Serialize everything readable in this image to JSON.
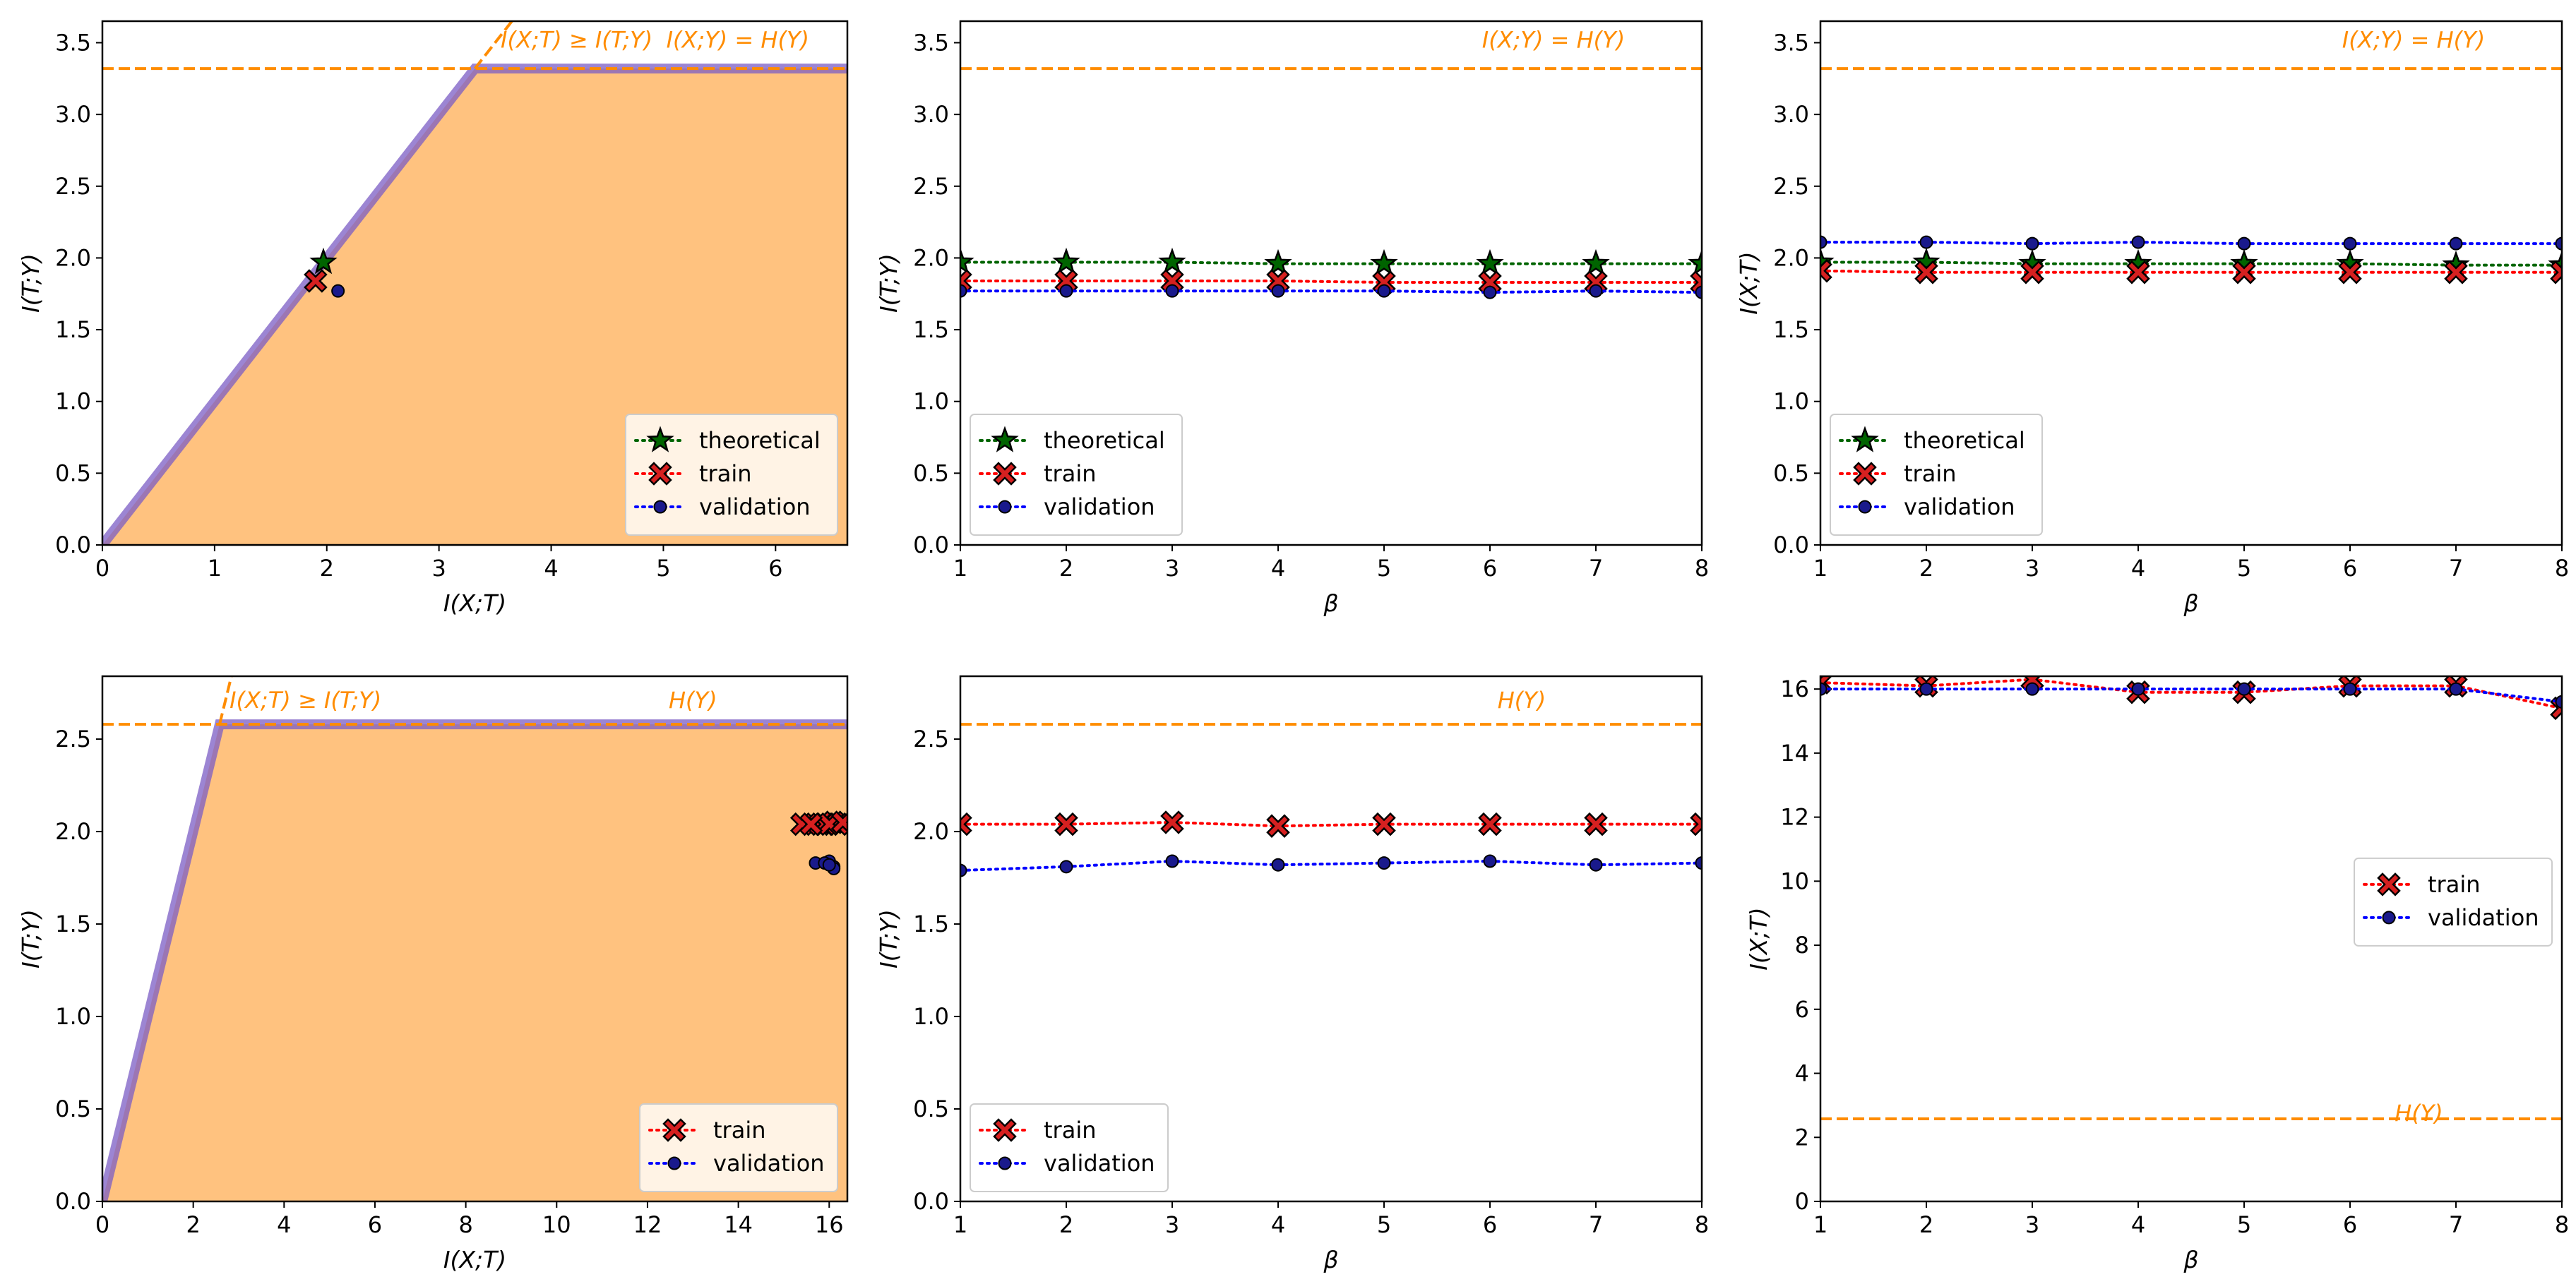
{
  "colors": {
    "region_fill": "#ffc27f",
    "boundary": "#7b5cc4",
    "hy_line": "#ff8c00",
    "theoretical": "#006400",
    "train": "#ff0000",
    "validation": "#0000ff",
    "train_marker": "#d62020",
    "validation_marker": "#1a1a8c"
  },
  "chart_data": [
    {
      "id": "p1",
      "type": "scatter",
      "xlabel": "I(X;T)",
      "ylabel": "I(T;Y)",
      "xlim": [
        0,
        6.64
      ],
      "ylim": [
        0,
        3.65
      ],
      "xticks": [
        0,
        1,
        2,
        3,
        4,
        5,
        6
      ],
      "xtick_labels": [
        "0",
        "1",
        "2",
        "3",
        "4",
        "5",
        "6"
      ],
      "yticks": [
        0,
        0.5,
        1,
        1.5,
        2,
        2.5,
        3,
        3.5
      ],
      "ytick_labels": [
        "0.0",
        "0.5",
        "1.0",
        "1.5",
        "2.0",
        "2.5",
        "3.0",
        "3.5"
      ],
      "region": {
        "hy": 3.32
      },
      "hy_line": 3.32,
      "annotations": [
        {
          "text": "I(X;T) ≥ I(T;Y)",
          "x": 3.55,
          "y": 3.52,
          "anchor": "start"
        },
        {
          "text": "I(X;Y) = H(Y)",
          "x": 6.3,
          "y": 3.52,
          "anchor": "end"
        }
      ],
      "series": [
        {
          "name": "theoretical",
          "marker": "star",
          "line": false,
          "x": [
            1.97
          ],
          "y": [
            1.97
          ]
        },
        {
          "name": "train",
          "marker": "x",
          "line": false,
          "x": [
            1.9
          ],
          "y": [
            1.84
          ]
        },
        {
          "name": "validation",
          "marker": "dot",
          "line": false,
          "x": [
            2.1
          ],
          "y": [
            1.77
          ]
        }
      ],
      "legend": {
        "position": "bottom-right",
        "entries": [
          {
            "label": "theoretical",
            "series": "theoretical"
          },
          {
            "label": "train",
            "series": "train"
          },
          {
            "label": "validation",
            "series": "validation"
          }
        ]
      }
    },
    {
      "id": "p2",
      "type": "line",
      "xlabel": "β",
      "ylabel": "I(T;Y)",
      "xlim": [
        1,
        8
      ],
      "ylim": [
        0,
        3.65
      ],
      "xticks": [
        1,
        2,
        3,
        4,
        5,
        6,
        7,
        8
      ],
      "xtick_labels": [
        "1",
        "2",
        "3",
        "4",
        "5",
        "6",
        "7",
        "8"
      ],
      "yticks": [
        0,
        0.5,
        1,
        1.5,
        2,
        2.5,
        3,
        3.5
      ],
      "ytick_labels": [
        "0.0",
        "0.5",
        "1.0",
        "1.5",
        "2.0",
        "2.5",
        "3.0",
        "3.5"
      ],
      "hy_line": 3.32,
      "annotations": [
        {
          "text": "I(X;Y) = H(Y)",
          "x": 6.6,
          "y": 3.52,
          "anchor": "middle"
        }
      ],
      "series": [
        {
          "name": "theoretical",
          "marker": "star",
          "line": true,
          "x": [
            1,
            2,
            3,
            4,
            5,
            6,
            7,
            8
          ],
          "y": [
            1.97,
            1.97,
            1.97,
            1.96,
            1.96,
            1.96,
            1.96,
            1.96
          ]
        },
        {
          "name": "train",
          "marker": "x",
          "line": true,
          "x": [
            1,
            2,
            3,
            4,
            5,
            6,
            7,
            8
          ],
          "y": [
            1.84,
            1.84,
            1.84,
            1.84,
            1.83,
            1.83,
            1.83,
            1.83
          ]
        },
        {
          "name": "validation",
          "marker": "dot",
          "line": true,
          "x": [
            1,
            2,
            3,
            4,
            5,
            6,
            7,
            8
          ],
          "y": [
            1.77,
            1.77,
            1.77,
            1.77,
            1.77,
            1.76,
            1.77,
            1.76
          ]
        }
      ],
      "legend": {
        "position": "bottom-left",
        "entries": [
          {
            "label": "theoretical",
            "series": "theoretical"
          },
          {
            "label": "train",
            "series": "train"
          },
          {
            "label": "validation",
            "series": "validation"
          }
        ]
      }
    },
    {
      "id": "p3",
      "type": "line",
      "xlabel": "β",
      "ylabel": "I(X;T)",
      "xlim": [
        1,
        8
      ],
      "ylim": [
        0,
        3.65
      ],
      "xticks": [
        1,
        2,
        3,
        4,
        5,
        6,
        7,
        8
      ],
      "xtick_labels": [
        "1",
        "2",
        "3",
        "4",
        "5",
        "6",
        "7",
        "8"
      ],
      "yticks": [
        0,
        0.5,
        1,
        1.5,
        2,
        2.5,
        3,
        3.5
      ],
      "ytick_labels": [
        "0.0",
        "0.5",
        "1.0",
        "1.5",
        "2.0",
        "2.5",
        "3.0",
        "3.5"
      ],
      "hy_line": 3.32,
      "annotations": [
        {
          "text": "I(X;Y) = H(Y)",
          "x": 6.6,
          "y": 3.52,
          "anchor": "middle"
        }
      ],
      "series": [
        {
          "name": "theoretical",
          "marker": "star",
          "line": true,
          "x": [
            1,
            2,
            3,
            4,
            5,
            6,
            7,
            8
          ],
          "y": [
            1.97,
            1.97,
            1.96,
            1.96,
            1.96,
            1.96,
            1.95,
            1.95
          ]
        },
        {
          "name": "train",
          "marker": "x",
          "line": true,
          "x": [
            1,
            2,
            3,
            4,
            5,
            6,
            7,
            8
          ],
          "y": [
            1.91,
            1.9,
            1.9,
            1.9,
            1.9,
            1.9,
            1.9,
            1.9
          ]
        },
        {
          "name": "validation",
          "marker": "dot",
          "line": true,
          "x": [
            1,
            2,
            3,
            4,
            5,
            6,
            7,
            8
          ],
          "y": [
            2.11,
            2.11,
            2.1,
            2.11,
            2.1,
            2.1,
            2.1,
            2.1
          ]
        }
      ],
      "legend": {
        "position": "bottom-left",
        "entries": [
          {
            "label": "theoretical",
            "series": "theoretical"
          },
          {
            "label": "train",
            "series": "train"
          },
          {
            "label": "validation",
            "series": "validation"
          }
        ]
      }
    },
    {
      "id": "p4",
      "type": "scatter",
      "xlabel": "I(X;T)",
      "ylabel": "I(T;Y)",
      "xlim": [
        0,
        16.4
      ],
      "ylim": [
        0,
        2.84
      ],
      "xticks": [
        0,
        2,
        4,
        6,
        8,
        10,
        12,
        14,
        16
      ],
      "xtick_labels": [
        "0",
        "2",
        "4",
        "6",
        "8",
        "10",
        "12",
        "14",
        "16"
      ],
      "yticks": [
        0,
        0.5,
        1,
        1.5,
        2,
        2.5
      ],
      "ytick_labels": [
        "0.0",
        "0.5",
        "1.0",
        "1.5",
        "2.0",
        "2.5"
      ],
      "region": {
        "hy": 2.58
      },
      "hy_line": 2.58,
      "annotations": [
        {
          "text": "I(X;T) ≥ I(T;Y)",
          "x": 2.8,
          "y": 2.71,
          "anchor": "start"
        },
        {
          "text": "H(Y)",
          "x": 13.0,
          "y": 2.71,
          "anchor": "middle"
        }
      ],
      "series": [
        {
          "name": "train",
          "marker": "x",
          "line": false,
          "x": [
            15.4,
            15.8,
            16.1,
            15.9,
            16.2,
            16.0,
            16.3,
            15.6
          ],
          "y": [
            2.04,
            2.04,
            2.05,
            2.04,
            2.04,
            2.04,
            2.05,
            2.04
          ]
        },
        {
          "name": "validation",
          "marker": "dot",
          "line": false,
          "x": [
            15.7,
            16.0,
            16.1,
            15.9,
            16.1,
            16.0
          ],
          "y": [
            1.83,
            1.84,
            1.81,
            1.83,
            1.8,
            1.82
          ]
        }
      ],
      "legend": {
        "position": "bottom-right",
        "entries": [
          {
            "label": "train",
            "series": "train"
          },
          {
            "label": "validation",
            "series": "validation"
          }
        ]
      }
    },
    {
      "id": "p5",
      "type": "line",
      "xlabel": "β",
      "ylabel": "I(T;Y)",
      "xlim": [
        1,
        8
      ],
      "ylim": [
        0,
        2.84
      ],
      "xticks": [
        1,
        2,
        3,
        4,
        5,
        6,
        7,
        8
      ],
      "xtick_labels": [
        "1",
        "2",
        "3",
        "4",
        "5",
        "6",
        "7",
        "8"
      ],
      "yticks": [
        0,
        0.5,
        1,
        1.5,
        2,
        2.5
      ],
      "ytick_labels": [
        "0.0",
        "0.5",
        "1.0",
        "1.5",
        "2.0",
        "2.5"
      ],
      "hy_line": 2.58,
      "annotations": [
        {
          "text": "H(Y)",
          "x": 6.3,
          "y": 2.71,
          "anchor": "middle"
        }
      ],
      "series": [
        {
          "name": "train",
          "marker": "x",
          "line": true,
          "x": [
            1,
            2,
            3,
            4,
            5,
            6,
            7,
            8
          ],
          "y": [
            2.04,
            2.04,
            2.05,
            2.03,
            2.04,
            2.04,
            2.04,
            2.04
          ]
        },
        {
          "name": "validation",
          "marker": "dot",
          "line": true,
          "x": [
            1,
            2,
            3,
            4,
            5,
            6,
            7,
            8
          ],
          "y": [
            1.79,
            1.81,
            1.84,
            1.82,
            1.83,
            1.84,
            1.82,
            1.83
          ]
        }
      ],
      "legend": {
        "position": "bottom-left",
        "entries": [
          {
            "label": "train",
            "series": "train"
          },
          {
            "label": "validation",
            "series": "validation"
          }
        ]
      }
    },
    {
      "id": "p6",
      "type": "line",
      "xlabel": "β",
      "ylabel": "I(X;T)",
      "xlim": [
        1,
        8
      ],
      "ylim": [
        0,
        16.4
      ],
      "xticks": [
        1,
        2,
        3,
        4,
        5,
        6,
        7,
        8
      ],
      "xtick_labels": [
        "1",
        "2",
        "3",
        "4",
        "5",
        "6",
        "7",
        "8"
      ],
      "yticks": [
        0,
        2,
        4,
        6,
        8,
        10,
        12,
        14,
        16
      ],
      "ytick_labels": [
        "0",
        "2",
        "4",
        "6",
        "8",
        "10",
        "12",
        "14",
        "16"
      ],
      "hy_line": 2.58,
      "annotations": [
        {
          "text": "H(Y)",
          "x": 6.65,
          "y": 2.75,
          "anchor": "middle"
        }
      ],
      "series": [
        {
          "name": "train",
          "marker": "x",
          "line": true,
          "x": [
            1,
            2,
            3,
            4,
            5,
            6,
            7,
            8
          ],
          "y": [
            16.2,
            16.1,
            16.3,
            15.9,
            15.9,
            16.1,
            16.1,
            15.4
          ]
        },
        {
          "name": "validation",
          "marker": "dot",
          "line": true,
          "x": [
            1,
            2,
            3,
            4,
            5,
            6,
            7,
            8
          ],
          "y": [
            16.0,
            16.0,
            16.0,
            16.0,
            16.0,
            16.0,
            16.0,
            15.6
          ]
        }
      ],
      "legend": {
        "position": "center-right",
        "entries": [
          {
            "label": "train",
            "series": "train"
          },
          {
            "label": "validation",
            "series": "validation"
          }
        ]
      }
    }
  ]
}
